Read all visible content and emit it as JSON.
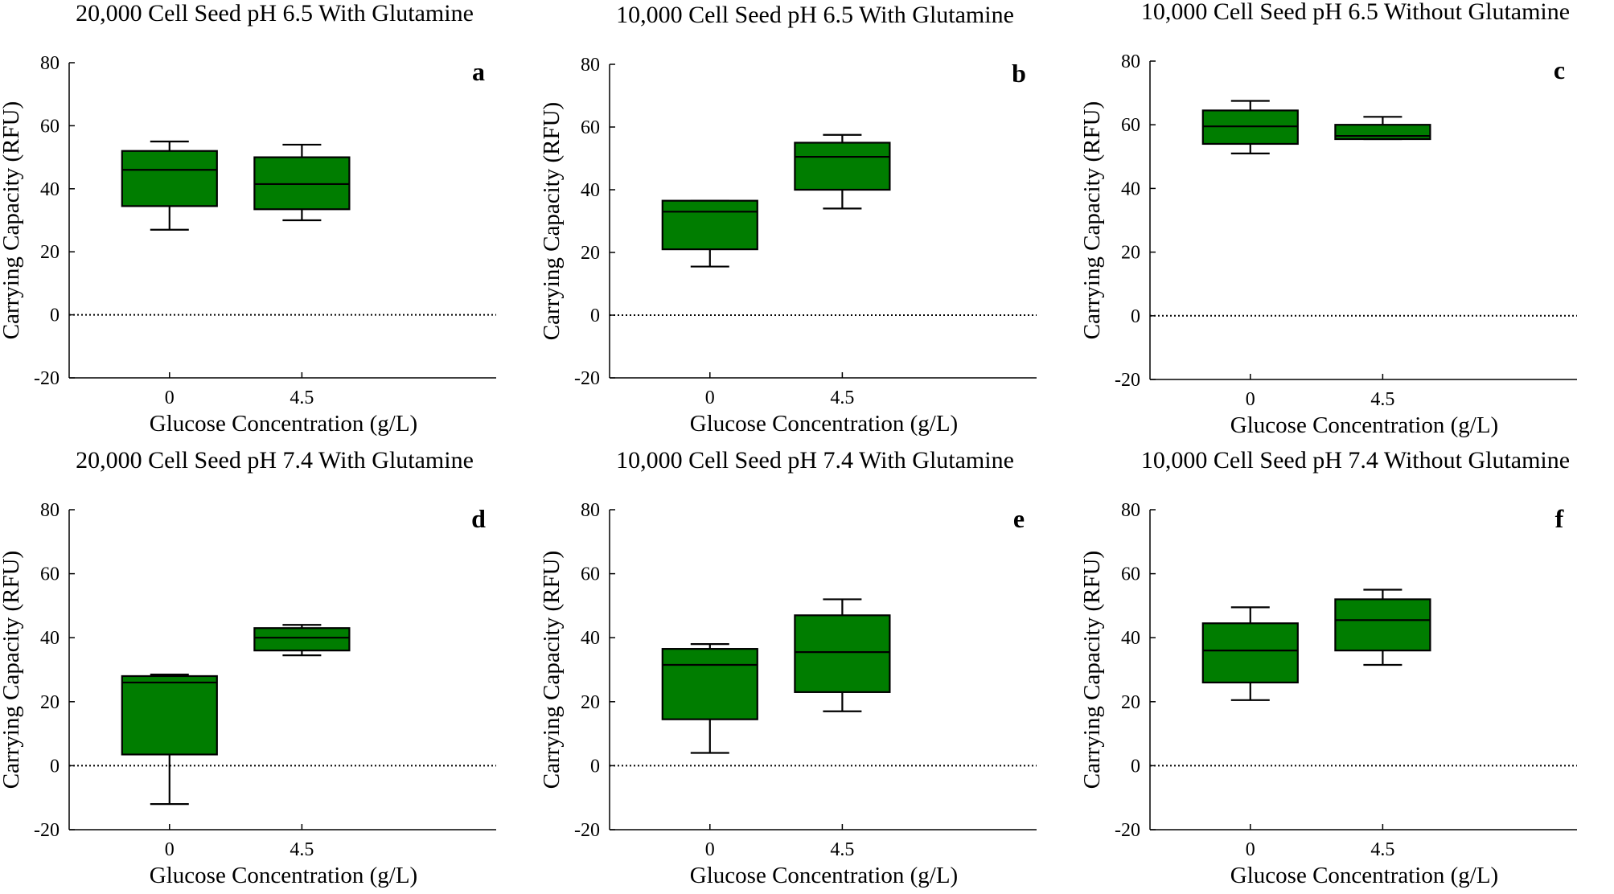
{
  "chart_data": [
    {
      "type": "box",
      "panel": "a",
      "title": "20,000 Cell Seed pH 6.5 With Glutamine",
      "xlabel": "Glucose Concentration (g/L)",
      "ylabel": "Carrying Capacity (RFU)",
      "ylim": [
        -20,
        80
      ],
      "yticks": [
        "-20",
        "0",
        "20",
        "40",
        "60",
        "80"
      ],
      "categories": [
        "0",
        "4.5"
      ],
      "boxes": [
        {
          "whisker_low": 27,
          "q1": 34.5,
          "median": 46,
          "q3": 52,
          "whisker_high": 55
        },
        {
          "whisker_low": 30,
          "q1": 33.5,
          "median": 41.5,
          "q3": 50,
          "whisker_high": 54
        }
      ],
      "reference_line": 0,
      "box_color": "#007d00"
    },
    {
      "type": "box",
      "panel": "b",
      "title": "10,000 Cell Seed pH 6.5 With Glutamine",
      "xlabel": "Glucose Concentration (g/L)",
      "ylabel": "Carrying Capacity (RFU)",
      "ylim": [
        -20,
        80
      ],
      "yticks": [
        "-20",
        "0",
        "20",
        "40",
        "60",
        "80"
      ],
      "categories": [
        "0",
        "4.5"
      ],
      "boxes": [
        {
          "whisker_low": 15.5,
          "q1": 21,
          "median": 33,
          "q3": 36.5,
          "whisker_high": 36.5
        },
        {
          "whisker_low": 34,
          "q1": 40,
          "median": 50.5,
          "q3": 55,
          "whisker_high": 57.5
        }
      ],
      "reference_line": 0,
      "box_color": "#007d00"
    },
    {
      "type": "box",
      "panel": "c",
      "title": "10,000 Cell Seed pH 6.5 Without Glutamine",
      "xlabel": "Glucose Concentration (g/L)",
      "ylabel": "Carrying Capacity (RFU)",
      "ylim": [
        -20,
        80
      ],
      "yticks": [
        "-20",
        "0",
        "20",
        "40",
        "60",
        "80"
      ],
      "categories": [
        "0",
        "4.5"
      ],
      "boxes": [
        {
          "whisker_low": 51,
          "q1": 54,
          "median": 59.5,
          "q3": 64.5,
          "whisker_high": 67.5
        },
        {
          "whisker_low": 55.5,
          "q1": 55.5,
          "median": 56.5,
          "q3": 60,
          "whisker_high": 62.5
        }
      ],
      "reference_line": 0,
      "box_color": "#007d00"
    },
    {
      "type": "box",
      "panel": "d",
      "title": "20,000 Cell Seed pH 7.4 With Glutamine",
      "xlabel": "Glucose Concentration (g/L)",
      "ylabel": "Carrying Capacity (RFU)",
      "ylim": [
        -20,
        80
      ],
      "yticks": [
        "-20",
        "0",
        "20",
        "40",
        "60",
        "80"
      ],
      "categories": [
        "0",
        "4.5"
      ],
      "boxes": [
        {
          "whisker_low": -12,
          "q1": 3.5,
          "median": 26,
          "q3": 28,
          "whisker_high": 28.5
        },
        {
          "whisker_low": 34.5,
          "q1": 36,
          "median": 40,
          "q3": 43,
          "whisker_high": 44
        }
      ],
      "reference_line": 0,
      "box_color": "#007d00"
    },
    {
      "type": "box",
      "panel": "e",
      "title": "10,000 Cell Seed pH 7.4 With Glutamine",
      "xlabel": "Glucose Concentration (g/L)",
      "ylabel": "Carrying Capacity (RFU)",
      "ylim": [
        -20,
        80
      ],
      "yticks": [
        "-20",
        "0",
        "20",
        "40",
        "60",
        "80"
      ],
      "categories": [
        "0",
        "4.5"
      ],
      "boxes": [
        {
          "whisker_low": 4,
          "q1": 14.5,
          "median": 31.5,
          "q3": 36.5,
          "whisker_high": 38
        },
        {
          "whisker_low": 17,
          "q1": 23,
          "median": 35.5,
          "q3": 47,
          "whisker_high": 52
        }
      ],
      "reference_line": 0,
      "box_color": "#007d00"
    },
    {
      "type": "box",
      "panel": "f",
      "title": "10,000 Cell Seed pH 7.4 Without Glutamine",
      "xlabel": "Glucose Concentration (g/L)",
      "ylabel": "Carrying Capacity (RFU)",
      "ylim": [
        -20,
        80
      ],
      "yticks": [
        "-20",
        "0",
        "20",
        "40",
        "60",
        "80"
      ],
      "categories": [
        "0",
        "4.5"
      ],
      "boxes": [
        {
          "whisker_low": 20.5,
          "q1": 26,
          "median": 36,
          "q3": 44.5,
          "whisker_high": 49.5
        },
        {
          "whisker_low": 31.5,
          "q1": 36,
          "median": 45.5,
          "q3": 52,
          "whisker_high": 55
        }
      ],
      "reference_line": 0,
      "box_color": "#007d00"
    }
  ]
}
